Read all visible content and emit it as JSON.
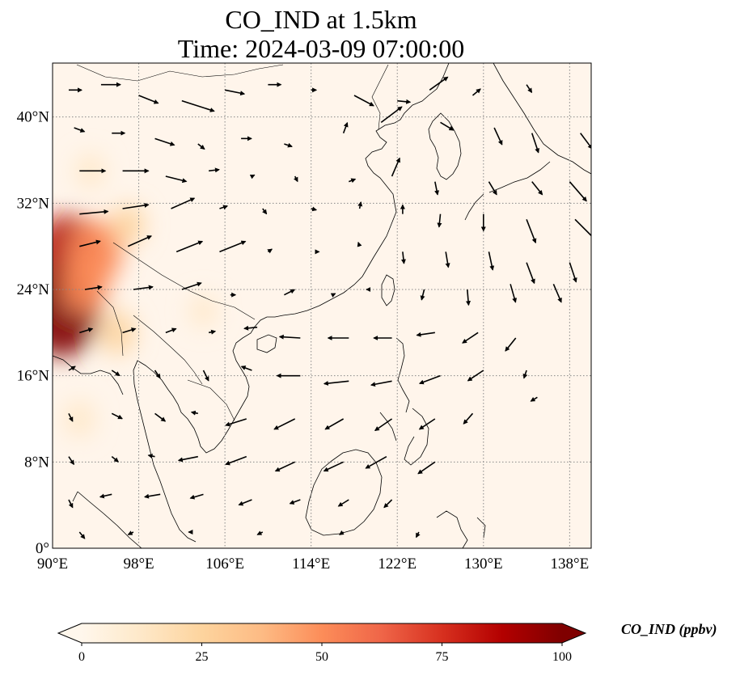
{
  "title": {
    "line1": "CO_IND at 1.5km",
    "line2": "Time: 2024-03-09 07:00:00"
  },
  "map": {
    "projection": "PlateCarree",
    "lon_range": [
      90,
      140
    ],
    "lat_range": [
      0,
      45
    ],
    "gridlines": "dotted gray",
    "x_ticks": [
      {
        "value": 90,
        "label": "90°E"
      },
      {
        "value": 98,
        "label": "98°E"
      },
      {
        "value": 106,
        "label": "106°E"
      },
      {
        "value": 114,
        "label": "114°E"
      },
      {
        "value": 122,
        "label": "122°E"
      },
      {
        "value": 130,
        "label": "130°E"
      },
      {
        "value": 138,
        "label": "138°E"
      }
    ],
    "y_ticks": [
      {
        "value": 0,
        "label": "0°"
      },
      {
        "value": 8,
        "label": "8°N"
      },
      {
        "value": 16,
        "label": "16°N"
      },
      {
        "value": 24,
        "label": "24°N"
      },
      {
        "value": 32,
        "label": "32°N"
      },
      {
        "value": 40,
        "label": "40°N"
      }
    ],
    "background_color": "#fff5eb",
    "coastline_color": "#000000",
    "field": "CO_IND",
    "high_concentration_areas": [
      {
        "lon": 91.5,
        "lat": 27.0,
        "value": 85
      },
      {
        "lon": 90.8,
        "lat": 22.0,
        "value": 95
      },
      {
        "lon": 94.0,
        "lat": 27.5,
        "value": 55
      },
      {
        "lon": 93.0,
        "lat": 24.5,
        "value": 45
      },
      {
        "lon": 96.0,
        "lat": 20.0,
        "value": 25
      },
      {
        "lon": 97.0,
        "lat": 30.0,
        "value": 20
      },
      {
        "lon": 93.5,
        "lat": 35.0,
        "value": 12
      },
      {
        "lon": 92.5,
        "lat": 12.0,
        "value": 15
      },
      {
        "lon": 104.0,
        "lat": 22.0,
        "value": 8
      }
    ],
    "wind_vectors": [
      {
        "lon": 91.5,
        "lat": 42.5,
        "u": 1.0,
        "v": 0.0
      },
      {
        "lon": 94.5,
        "lat": 43.0,
        "u": 1.5,
        "v": 0.0
      },
      {
        "lon": 98.0,
        "lat": 42.0,
        "u": 1.5,
        "v": -0.6
      },
      {
        "lon": 102.0,
        "lat": 41.5,
        "u": 2.5,
        "v": -0.8
      },
      {
        "lon": 106.0,
        "lat": 42.5,
        "u": 1.5,
        "v": -0.3
      },
      {
        "lon": 110.0,
        "lat": 43.0,
        "u": 1.0,
        "v": 0.0
      },
      {
        "lon": 114.0,
        "lat": 42.5,
        "u": 0.4,
        "v": 0.0
      },
      {
        "lon": 118.0,
        "lat": 42.0,
        "u": 1.5,
        "v": -0.8
      },
      {
        "lon": 122.0,
        "lat": 41.5,
        "u": 1.0,
        "v": -0.1
      },
      {
        "lon": 125.0,
        "lat": 42.5,
        "u": 1.4,
        "v": 1.0
      },
      {
        "lon": 129.0,
        "lat": 42.0,
        "u": 0.6,
        "v": 0.5
      },
      {
        "lon": 134.0,
        "lat": 43.0,
        "u": 0.4,
        "v": -0.6
      },
      {
        "lon": 92.0,
        "lat": 39.0,
        "u": 0.8,
        "v": -0.3
      },
      {
        "lon": 95.5,
        "lat": 38.5,
        "u": 1.0,
        "v": 0.0
      },
      {
        "lon": 99.5,
        "lat": 38.0,
        "u": 1.5,
        "v": -0.5
      },
      {
        "lon": 103.5,
        "lat": 37.5,
        "u": 0.5,
        "v": -0.4
      },
      {
        "lon": 107.5,
        "lat": 38.0,
        "u": 0.8,
        "v": 0.0
      },
      {
        "lon": 111.5,
        "lat": 37.5,
        "u": 0.6,
        "v": -0.2
      },
      {
        "lon": 117.0,
        "lat": 38.5,
        "u": 0.3,
        "v": 0.8
      },
      {
        "lon": 120.5,
        "lat": 39.5,
        "u": 1.6,
        "v": 1.2
      },
      {
        "lon": 126.0,
        "lat": 39.5,
        "u": 1.0,
        "v": -0.6
      },
      {
        "lon": 131.0,
        "lat": 39.0,
        "u": 0.6,
        "v": -1.3
      },
      {
        "lon": 134.5,
        "lat": 38.5,
        "u": 0.5,
        "v": -1.5
      },
      {
        "lon": 139.0,
        "lat": 38.5,
        "u": 0.9,
        "v": -1.2
      },
      {
        "lon": 92.5,
        "lat": 35.0,
        "u": 2.0,
        "v": 0.0
      },
      {
        "lon": 96.5,
        "lat": 35.0,
        "u": 2.0,
        "v": 0.0
      },
      {
        "lon": 100.5,
        "lat": 34.5,
        "u": 1.6,
        "v": -0.4
      },
      {
        "lon": 104.5,
        "lat": 35.0,
        "u": 0.8,
        "v": 0.1
      },
      {
        "lon": 108.5,
        "lat": 34.5,
        "u": 0.2,
        "v": 0.1
      },
      {
        "lon": 112.5,
        "lat": 34.5,
        "u": 0.2,
        "v": -0.4
      },
      {
        "lon": 117.5,
        "lat": 34.0,
        "u": 0.5,
        "v": 0.2
      },
      {
        "lon": 121.5,
        "lat": 34.5,
        "u": 0.6,
        "v": 1.4
      },
      {
        "lon": 125.5,
        "lat": 34.0,
        "u": 0.2,
        "v": -1.0
      },
      {
        "lon": 130.5,
        "lat": 34.0,
        "u": 0.6,
        "v": -1.0
      },
      {
        "lon": 134.5,
        "lat": 34.0,
        "u": 0.8,
        "v": -1.0
      },
      {
        "lon": 138.0,
        "lat": 34.0,
        "u": 1.3,
        "v": -1.5
      },
      {
        "lon": 92.5,
        "lat": 31.0,
        "u": 2.2,
        "v": 0.2
      },
      {
        "lon": 96.5,
        "lat": 31.5,
        "u": 2.0,
        "v": 0.3
      },
      {
        "lon": 101.0,
        "lat": 31.5,
        "u": 1.8,
        "v": 0.8
      },
      {
        "lon": 105.5,
        "lat": 31.5,
        "u": 0.6,
        "v": 0.2
      },
      {
        "lon": 109.5,
        "lat": 31.5,
        "u": 0.3,
        "v": -0.4
      },
      {
        "lon": 114.0,
        "lat": 31.5,
        "u": 0.4,
        "v": -0.1
      },
      {
        "lon": 118.5,
        "lat": 31.5,
        "u": 0.1,
        "v": 0.5
      },
      {
        "lon": 122.5,
        "lat": 31.0,
        "u": 0.0,
        "v": 0.7
      },
      {
        "lon": 126.0,
        "lat": 31.0,
        "u": -0.1,
        "v": -1.0
      },
      {
        "lon": 130.0,
        "lat": 31.0,
        "u": 0.0,
        "v": -1.3
      },
      {
        "lon": 134.0,
        "lat": 30.5,
        "u": 0.7,
        "v": -1.8
      },
      {
        "lon": 138.5,
        "lat": 30.5,
        "u": 1.6,
        "v": -1.6
      },
      {
        "lon": 92.5,
        "lat": 28.0,
        "u": 1.6,
        "v": 0.4
      },
      {
        "lon": 97.0,
        "lat": 28.0,
        "u": 1.8,
        "v": 0.8
      },
      {
        "lon": 101.5,
        "lat": 27.5,
        "u": 2.0,
        "v": 0.8
      },
      {
        "lon": 105.5,
        "lat": 27.5,
        "u": 2.0,
        "v": 0.8
      },
      {
        "lon": 110.0,
        "lat": 27.5,
        "u": 0.3,
        "v": 0.2
      },
      {
        "lon": 114.5,
        "lat": 27.5,
        "u": 0.2,
        "v": 0.0
      },
      {
        "lon": 118.5,
        "lat": 28.0,
        "u": -0.1,
        "v": 0.3
      },
      {
        "lon": 122.5,
        "lat": 27.5,
        "u": 0.1,
        "v": -0.9
      },
      {
        "lon": 126.5,
        "lat": 27.5,
        "u": 0.2,
        "v": -1.2
      },
      {
        "lon": 130.5,
        "lat": 27.5,
        "u": 0.3,
        "v": -1.4
      },
      {
        "lon": 134.0,
        "lat": 26.5,
        "u": 0.6,
        "v": -1.6
      },
      {
        "lon": 138.0,
        "lat": 26.5,
        "u": 0.5,
        "v": -1.5
      },
      {
        "lon": 93.0,
        "lat": 24.0,
        "u": 1.3,
        "v": 0.2
      },
      {
        "lon": 97.5,
        "lat": 24.0,
        "u": 1.5,
        "v": 0.2
      },
      {
        "lon": 102.0,
        "lat": 24.0,
        "u": 1.5,
        "v": 0.5
      },
      {
        "lon": 106.5,
        "lat": 23.5,
        "u": 0.4,
        "v": 0.0
      },
      {
        "lon": 111.5,
        "lat": 23.5,
        "u": 0.8,
        "v": 0.4
      },
      {
        "lon": 116.0,
        "lat": 23.5,
        "u": 0.2,
        "v": 0.1
      },
      {
        "lon": 119.5,
        "lat": 24.0,
        "u": -0.3,
        "v": 0.0
      },
      {
        "lon": 124.5,
        "lat": 24.0,
        "u": -0.2,
        "v": -0.8
      },
      {
        "lon": 128.5,
        "lat": 24.0,
        "u": 0.1,
        "v": -1.2
      },
      {
        "lon": 132.5,
        "lat": 24.5,
        "u": 0.4,
        "v": -1.4
      },
      {
        "lon": 136.5,
        "lat": 24.5,
        "u": 0.6,
        "v": -1.4
      },
      {
        "lon": 92.5,
        "lat": 20.0,
        "u": 1.0,
        "v": 0.3
      },
      {
        "lon": 96.5,
        "lat": 20.0,
        "u": 1.0,
        "v": 0.3
      },
      {
        "lon": 100.5,
        "lat": 20.0,
        "u": 0.8,
        "v": 0.3
      },
      {
        "lon": 104.5,
        "lat": 20.0,
        "u": 0.5,
        "v": 0.1
      },
      {
        "lon": 109.0,
        "lat": 20.5,
        "u": -1.0,
        "v": -0.1
      },
      {
        "lon": 113.0,
        "lat": 19.5,
        "u": -1.6,
        "v": 0.1
      },
      {
        "lon": 117.5,
        "lat": 19.5,
        "u": -1.6,
        "v": 0.0
      },
      {
        "lon": 121.5,
        "lat": 19.5,
        "u": -1.4,
        "v": 0.0
      },
      {
        "lon": 125.5,
        "lat": 20.0,
        "u": -1.4,
        "v": -0.2
      },
      {
        "lon": 129.5,
        "lat": 20.0,
        "u": -1.2,
        "v": -0.8
      },
      {
        "lon": 133.0,
        "lat": 19.5,
        "u": -0.8,
        "v": -1.0
      },
      {
        "lon": 91.5,
        "lat": 16.5,
        "u": 0.5,
        "v": 0.3
      },
      {
        "lon": 95.5,
        "lat": 16.5,
        "u": 0.6,
        "v": -0.4
      },
      {
        "lon": 99.5,
        "lat": 16.5,
        "u": 0.4,
        "v": -0.6
      },
      {
        "lon": 104.0,
        "lat": 16.5,
        "u": 0.4,
        "v": -0.8
      },
      {
        "lon": 108.5,
        "lat": 16.5,
        "u": -0.8,
        "v": 0.3
      },
      {
        "lon": 113.0,
        "lat": 16.0,
        "u": -1.8,
        "v": 0.0
      },
      {
        "lon": 117.5,
        "lat": 15.5,
        "u": -1.9,
        "v": -0.2
      },
      {
        "lon": 121.5,
        "lat": 15.5,
        "u": -1.6,
        "v": -0.3
      },
      {
        "lon": 126.0,
        "lat": 16.0,
        "u": -1.6,
        "v": -0.6
      },
      {
        "lon": 130.0,
        "lat": 16.5,
        "u": -1.2,
        "v": -0.8
      },
      {
        "lon": 134.0,
        "lat": 16.5,
        "u": -0.2,
        "v": -0.6
      },
      {
        "lon": 91.5,
        "lat": 12.5,
        "u": 0.3,
        "v": -0.6
      },
      {
        "lon": 95.5,
        "lat": 12.5,
        "u": 0.8,
        "v": -0.4
      },
      {
        "lon": 99.5,
        "lat": 12.5,
        "u": 0.8,
        "v": -0.6
      },
      {
        "lon": 103.5,
        "lat": 12.5,
        "u": -0.5,
        "v": 0.1
      },
      {
        "lon": 108.0,
        "lat": 12.0,
        "u": -1.6,
        "v": -0.5
      },
      {
        "lon": 112.5,
        "lat": 12.0,
        "u": -1.6,
        "v": -0.8
      },
      {
        "lon": 117.0,
        "lat": 12.0,
        "u": -1.4,
        "v": -0.8
      },
      {
        "lon": 121.5,
        "lat": 12.0,
        "u": -1.3,
        "v": -0.9
      },
      {
        "lon": 125.5,
        "lat": 12.0,
        "u": -1.2,
        "v": -0.8
      },
      {
        "lon": 129.0,
        "lat": 12.5,
        "u": -0.7,
        "v": -0.8
      },
      {
        "lon": 135.0,
        "lat": 14.0,
        "u": -0.5,
        "v": -0.3
      },
      {
        "lon": 91.5,
        "lat": 8.5,
        "u": 0.4,
        "v": -0.6
      },
      {
        "lon": 95.5,
        "lat": 8.5,
        "u": 0.5,
        "v": -0.4
      },
      {
        "lon": 99.5,
        "lat": 8.5,
        "u": -0.5,
        "v": 0.1
      },
      {
        "lon": 103.5,
        "lat": 8.5,
        "u": -1.5,
        "v": -0.3
      },
      {
        "lon": 108.0,
        "lat": 8.5,
        "u": -1.6,
        "v": -0.6
      },
      {
        "lon": 112.5,
        "lat": 8.0,
        "u": -1.5,
        "v": -0.7
      },
      {
        "lon": 117.0,
        "lat": 8.0,
        "u": -1.5,
        "v": -0.7
      },
      {
        "lon": 121.0,
        "lat": 8.5,
        "u": -1.6,
        "v": -0.9
      },
      {
        "lon": 125.5,
        "lat": 8.0,
        "u": -1.3,
        "v": -0.9
      },
      {
        "lon": 91.5,
        "lat": 4.5,
        "u": 0.3,
        "v": -0.6
      },
      {
        "lon": 95.5,
        "lat": 5.0,
        "u": -0.9,
        "v": -0.2
      },
      {
        "lon": 100.0,
        "lat": 5.0,
        "u": -1.2,
        "v": -0.2
      },
      {
        "lon": 104.0,
        "lat": 5.0,
        "u": -1.0,
        "v": -0.3
      },
      {
        "lon": 108.5,
        "lat": 4.5,
        "u": -1.0,
        "v": -0.4
      },
      {
        "lon": 113.0,
        "lat": 4.5,
        "u": -0.8,
        "v": -0.3
      },
      {
        "lon": 117.5,
        "lat": 4.5,
        "u": -0.8,
        "v": -0.5
      },
      {
        "lon": 121.5,
        "lat": 4.5,
        "u": -0.6,
        "v": -0.6
      },
      {
        "lon": 92.5,
        "lat": 1.5,
        "u": 0.4,
        "v": -0.5
      },
      {
        "lon": 97.5,
        "lat": 1.5,
        "u": -0.4,
        "v": -0.2
      },
      {
        "lon": 103.0,
        "lat": 1.5,
        "u": -0.3,
        "v": 0.0
      },
      {
        "lon": 109.5,
        "lat": 1.5,
        "u": -0.4,
        "v": -0.2
      },
      {
        "lon": 117.0,
        "lat": 1.5,
        "u": -0.3,
        "v": -0.2
      },
      {
        "lon": 124.0,
        "lat": 1.5,
        "u": -0.2,
        "v": -0.4
      }
    ]
  },
  "colorbar": {
    "label": "CO_IND (ppbv)",
    "min": 0,
    "max": 100,
    "extend": "both",
    "ticks": [
      {
        "value": 0,
        "label": "0"
      },
      {
        "value": 25,
        "label": "25"
      },
      {
        "value": 50,
        "label": "50"
      },
      {
        "value": 75,
        "label": "75"
      },
      {
        "value": 100,
        "label": "100"
      }
    ],
    "colormap": "OrRd",
    "colors": [
      "#fff7ec",
      "#fee8c8",
      "#fdd49e",
      "#fdbb84",
      "#fc8d59",
      "#ef6548",
      "#d7301f",
      "#b30000",
      "#7f0000"
    ]
  }
}
